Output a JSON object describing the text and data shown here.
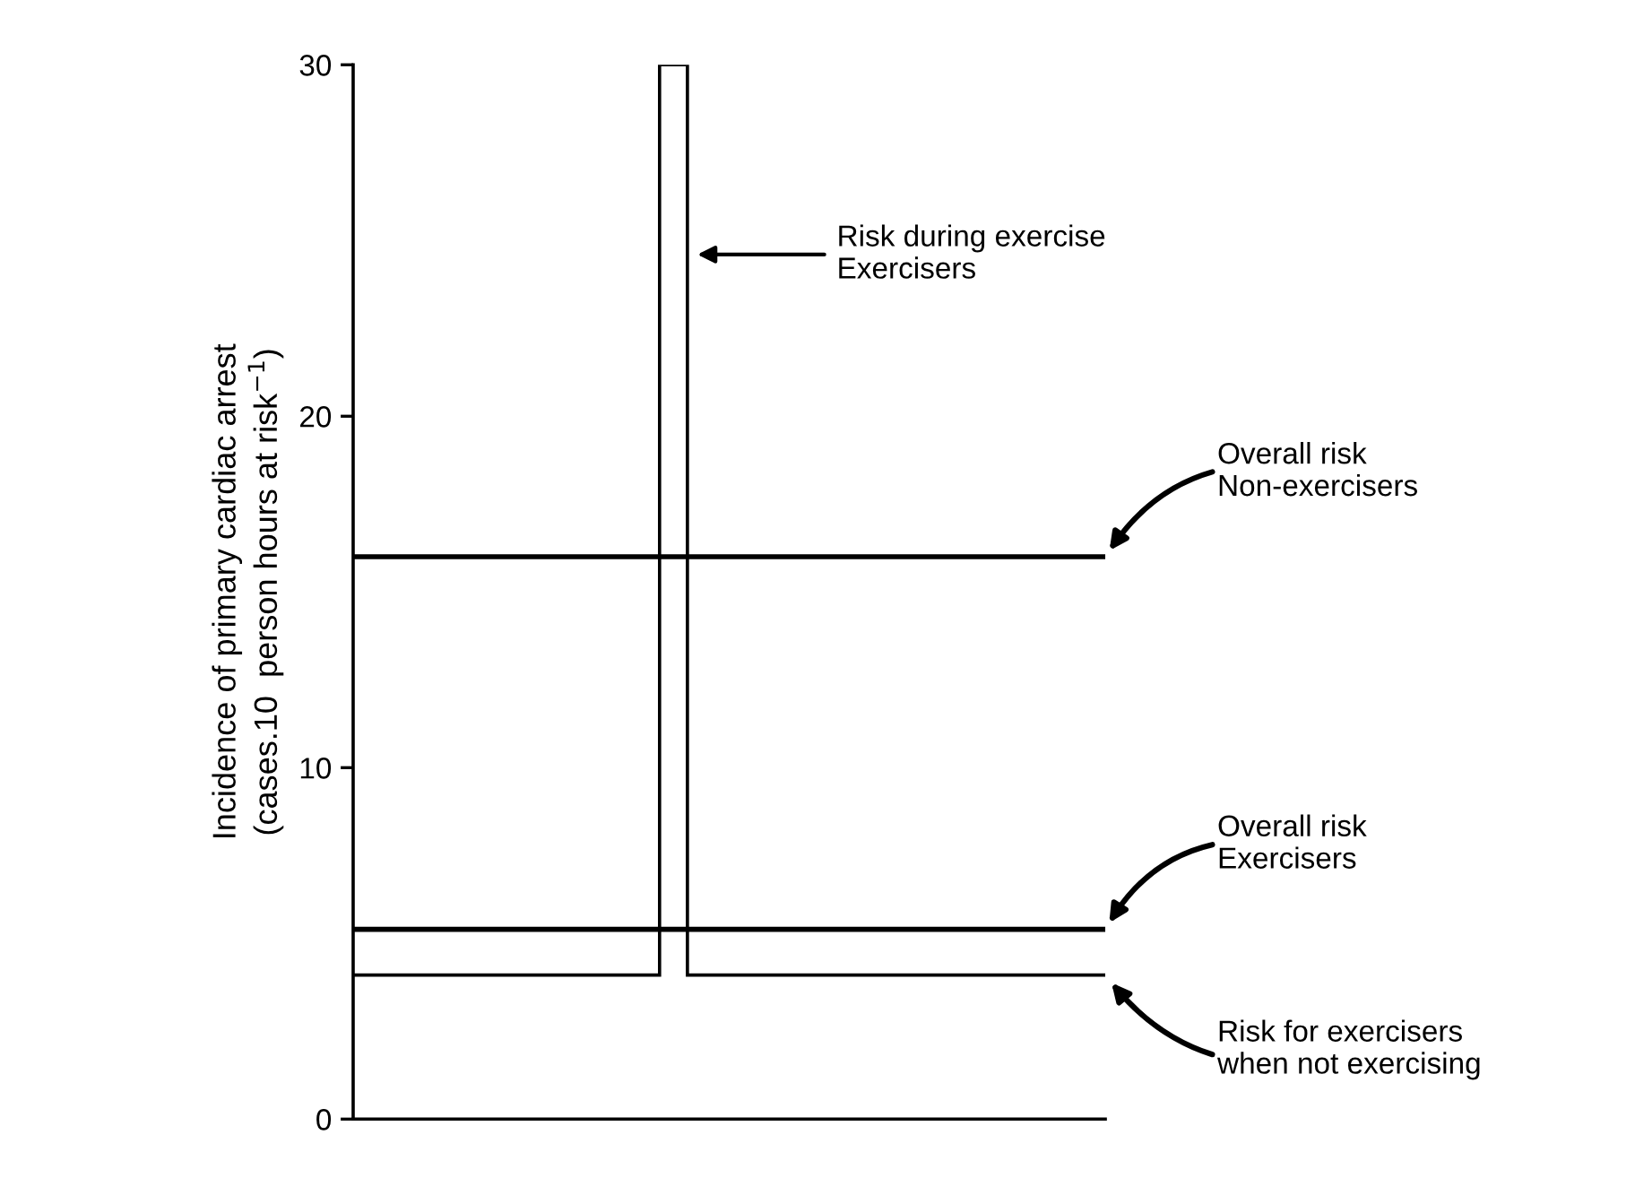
{
  "chart_data": {
    "type": "step",
    "ylabel": "Incidence of primary cardiac arrest\n(cases.10  person hours at risk$^{−1}$)",
    "categories": [
      null,
      null,
      null,
      null,
      null,
      null,
      null,
      null,
      null,
      null,
      null,
      null,
      null,
      null,
      null,
      null,
      null,
      null,
      null,
      null,
      null,
      null,
      null,
      null,
      null,
      null,
      null
    ],
    "series": [
      {
        "color": "#000000",
        "values": [
          4.1,
          4.1,
          4.1,
          4.1,
          4.1,
          4.1,
          4.1,
          4.1,
          4.1,
          4.1,
          4.1,
          30,
          4.1,
          4.1,
          4.1,
          4.1,
          4.1,
          4.1,
          4.1,
          4.1,
          4.1,
          4.1,
          4.1,
          4.1,
          4.1,
          4.1,
          4.1
        ]
      }
    ],
    "ylim": [
      0,
      30
    ],
    "yticks": [
      0,
      10,
      20,
      30
    ],
    "ref_lines": [
      {
        "axis": "y",
        "value": 16,
        "label": "Overall risk\nNon-exercisers",
        "color": "#000000"
      },
      {
        "axis": "y",
        "value": 5.4,
        "label": "Overall risk\nExercisers",
        "color": "#000000"
      }
    ],
    "annotations": [
      "Risk during exercise\nExercisers",
      "Risk for exercisers\nwhen not exercising"
    ],
    "grid": false,
    "tick_labels": "y",
    "marker": "none",
    "line_style": "solid"
  }
}
